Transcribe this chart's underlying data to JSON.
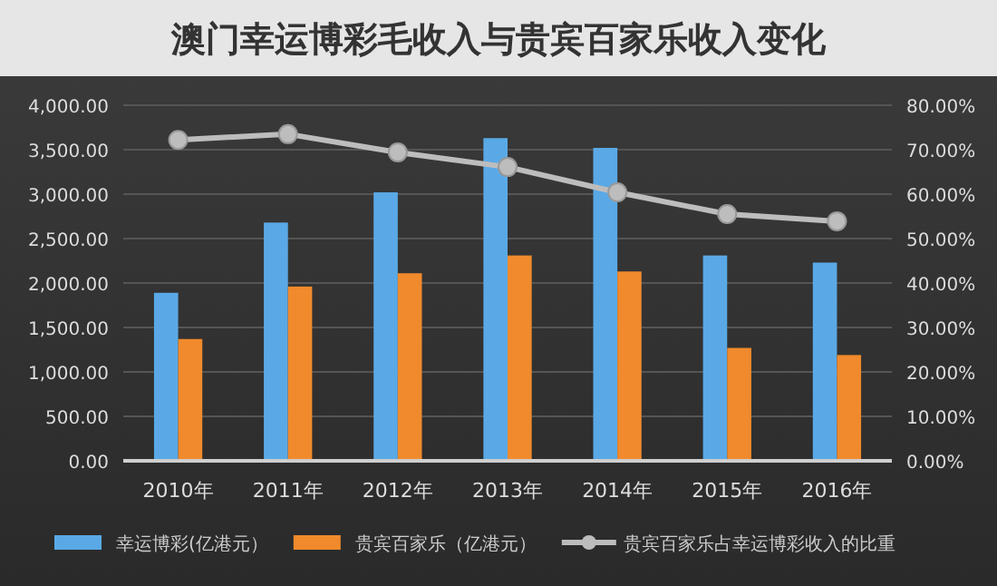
{
  "chart_data": {
    "type": "bar",
    "title": "澳门幸运博彩毛收入与贵宾百家乐收入变化",
    "categories": [
      "2010年",
      "2011年",
      "2012年",
      "2013年",
      "2014年",
      "2015年",
      "2016年"
    ],
    "series": [
      {
        "name": "幸运博彩(亿港元）",
        "color": "#5aa9e6",
        "values": [
          1890,
          2680,
          3020,
          3630,
          3520,
          2310,
          2230
        ]
      },
      {
        "name": "贵宾百家乐（亿港元）",
        "color": "#f08a2c",
        "values": [
          1370,
          1960,
          2110,
          2310,
          2130,
          1270,
          1190
        ]
      },
      {
        "name": "贵宾百家乐占幸运博彩收入的比重",
        "type": "line",
        "axis": "y2",
        "marker": "circle",
        "color": "#bdbdbd",
        "values": [
          72.2,
          73.5,
          69.4,
          66.1,
          60.4,
          55.5,
          53.9
        ]
      }
    ],
    "ylim": [
      0,
      4000
    ],
    "yticks": [
      {
        "value": 0,
        "label": "0.00"
      },
      {
        "value": 500,
        "label": "500.00"
      },
      {
        "value": 1000,
        "label": "1,000.00"
      },
      {
        "value": 1500,
        "label": "1,500.00"
      },
      {
        "value": 2000,
        "label": "2,000.00"
      },
      {
        "value": 2500,
        "label": "2,500.00"
      },
      {
        "value": 3000,
        "label": "3,000.00"
      },
      {
        "value": 3500,
        "label": "3,500.00"
      },
      {
        "value": 4000,
        "label": "4,000.00"
      }
    ],
    "y2lim": [
      0,
      80
    ],
    "y2ticks": [
      {
        "value": 0,
        "label": "0.00%"
      },
      {
        "value": 10,
        "label": "10.00%"
      },
      {
        "value": 20,
        "label": "20.00%"
      },
      {
        "value": 30,
        "label": "30.00%"
      },
      {
        "value": 40,
        "label": "40.00%"
      },
      {
        "value": 50,
        "label": "50.00%"
      },
      {
        "value": 60,
        "label": "60.00%"
      },
      {
        "value": 70,
        "label": "70.00%"
      },
      {
        "value": 80,
        "label": "80.00%"
      }
    ],
    "grid": "y",
    "legend": "bottom"
  }
}
